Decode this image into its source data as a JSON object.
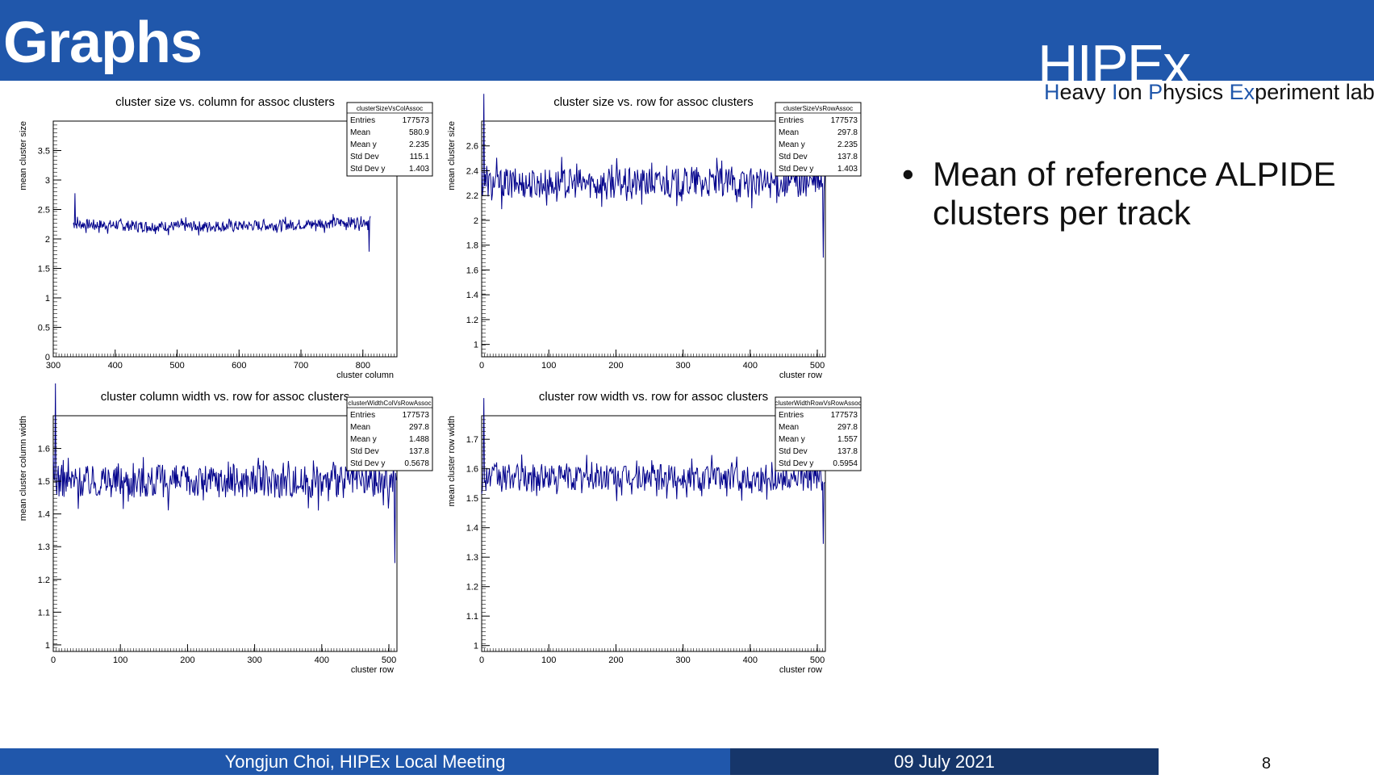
{
  "slide": {
    "title": "Graphs",
    "logo": "HIPEx",
    "lab_name_parts": [
      "H",
      "eavy ",
      "I",
      "on ",
      "P",
      "hysics ",
      "Ex",
      "periment lab"
    ],
    "bullet": "Mean of reference ALPIDE clusters per track"
  },
  "footer": {
    "author_meeting": "Yongjun Choi, HIPEx Local Meeting",
    "date": "09 July 2021",
    "page": "8"
  },
  "colors": {
    "header": "#2057ab",
    "footer_dark": "#16366a",
    "series": "#00008b"
  },
  "chart_data": [
    {
      "type": "line",
      "title": "cluster size vs. column for assoc clusters",
      "xlabel": "cluster column",
      "ylabel": "mean cluster size",
      "xlim": [
        300,
        855
      ],
      "ylim": [
        0,
        4
      ],
      "xticks": [
        "300",
        "400",
        "500",
        "600",
        "700",
        "800"
      ],
      "yticks": [
        "0",
        "0.5",
        "1",
        "1.5",
        "2",
        "2.5",
        "3",
        "3.5"
      ],
      "xstart": 332,
      "xend": 812,
      "baseline": 2.235,
      "noise": 0.09,
      "curve": "u",
      "stats": {
        "name": "clusterSizeVsColAssoc",
        "rows": [
          [
            "Entries",
            "177573"
          ],
          [
            "Mean",
            "580.9"
          ],
          [
            "Mean y",
            "2.235"
          ],
          [
            "Std Dev",
            "115.1"
          ],
          [
            "Std Dev y",
            "1.403"
          ]
        ]
      }
    },
    {
      "type": "line",
      "title": "cluster size vs. row for assoc clusters",
      "xlabel": "cluster row",
      "ylabel": "mean cluster size",
      "xlim": [
        0,
        512
      ],
      "ylim": [
        0.9,
        2.8
      ],
      "xticks": [
        "0",
        "100",
        "200",
        "300",
        "400",
        "500"
      ],
      "yticks": [
        "1",
        "1.2",
        "1.4",
        "1.6",
        "1.8",
        "2",
        "2.2",
        "2.4",
        "2.6"
      ],
      "xstart": 0,
      "xend": 511,
      "baseline": 2.3,
      "noise": 0.12,
      "curve": "flat",
      "stats": {
        "name": "clusterSizeVsRowAssoc",
        "rows": [
          [
            "Entries",
            "177573"
          ],
          [
            "Mean",
            "297.8"
          ],
          [
            "Mean y",
            "2.235"
          ],
          [
            "Std Dev",
            "137.8"
          ],
          [
            "Std Dev y",
            "1.403"
          ]
        ]
      }
    },
    {
      "type": "line",
      "title": "cluster column width vs. row for assoc clusters",
      "xlabel": "cluster row",
      "ylabel": "mean cluster column width",
      "xlim": [
        0,
        512
      ],
      "ylim": [
        0.98,
        1.7
      ],
      "xticks": [
        "0",
        "100",
        "200",
        "300",
        "400",
        "500"
      ],
      "yticks": [
        "1",
        "1.1",
        "1.2",
        "1.3",
        "1.4",
        "1.5",
        "1.6"
      ],
      "xstart": 0,
      "xend": 511,
      "baseline": 1.5,
      "noise": 0.05,
      "curve": "flat",
      "stats": {
        "name": "clusterWidthColVsRowAssoc",
        "rows": [
          [
            "Entries",
            "177573"
          ],
          [
            "Mean",
            "297.8"
          ],
          [
            "Mean y",
            "1.488"
          ],
          [
            "Std Dev",
            "137.8"
          ],
          [
            "Std Dev y",
            "0.5678"
          ]
        ]
      }
    },
    {
      "type": "line",
      "title": "cluster row width vs. row for assoc clusters",
      "xlabel": "cluster row",
      "ylabel": "mean cluster row width",
      "xlim": [
        0,
        512
      ],
      "ylim": [
        0.98,
        1.78
      ],
      "xticks": [
        "0",
        "100",
        "200",
        "300",
        "400",
        "500"
      ],
      "yticks": [
        "1",
        "1.1",
        "1.2",
        "1.3",
        "1.4",
        "1.5",
        "1.6",
        "1.7"
      ],
      "xstart": 0,
      "xend": 511,
      "baseline": 1.57,
      "noise": 0.045,
      "curve": "flat",
      "stats": {
        "name": "clusterWidthRowVsRowAssoc",
        "rows": [
          [
            "Entries",
            "177573"
          ],
          [
            "Mean",
            "297.8"
          ],
          [
            "Mean y",
            "1.557"
          ],
          [
            "Std Dev",
            "137.8"
          ],
          [
            "Std Dev y",
            "0.5954"
          ]
        ]
      }
    }
  ]
}
